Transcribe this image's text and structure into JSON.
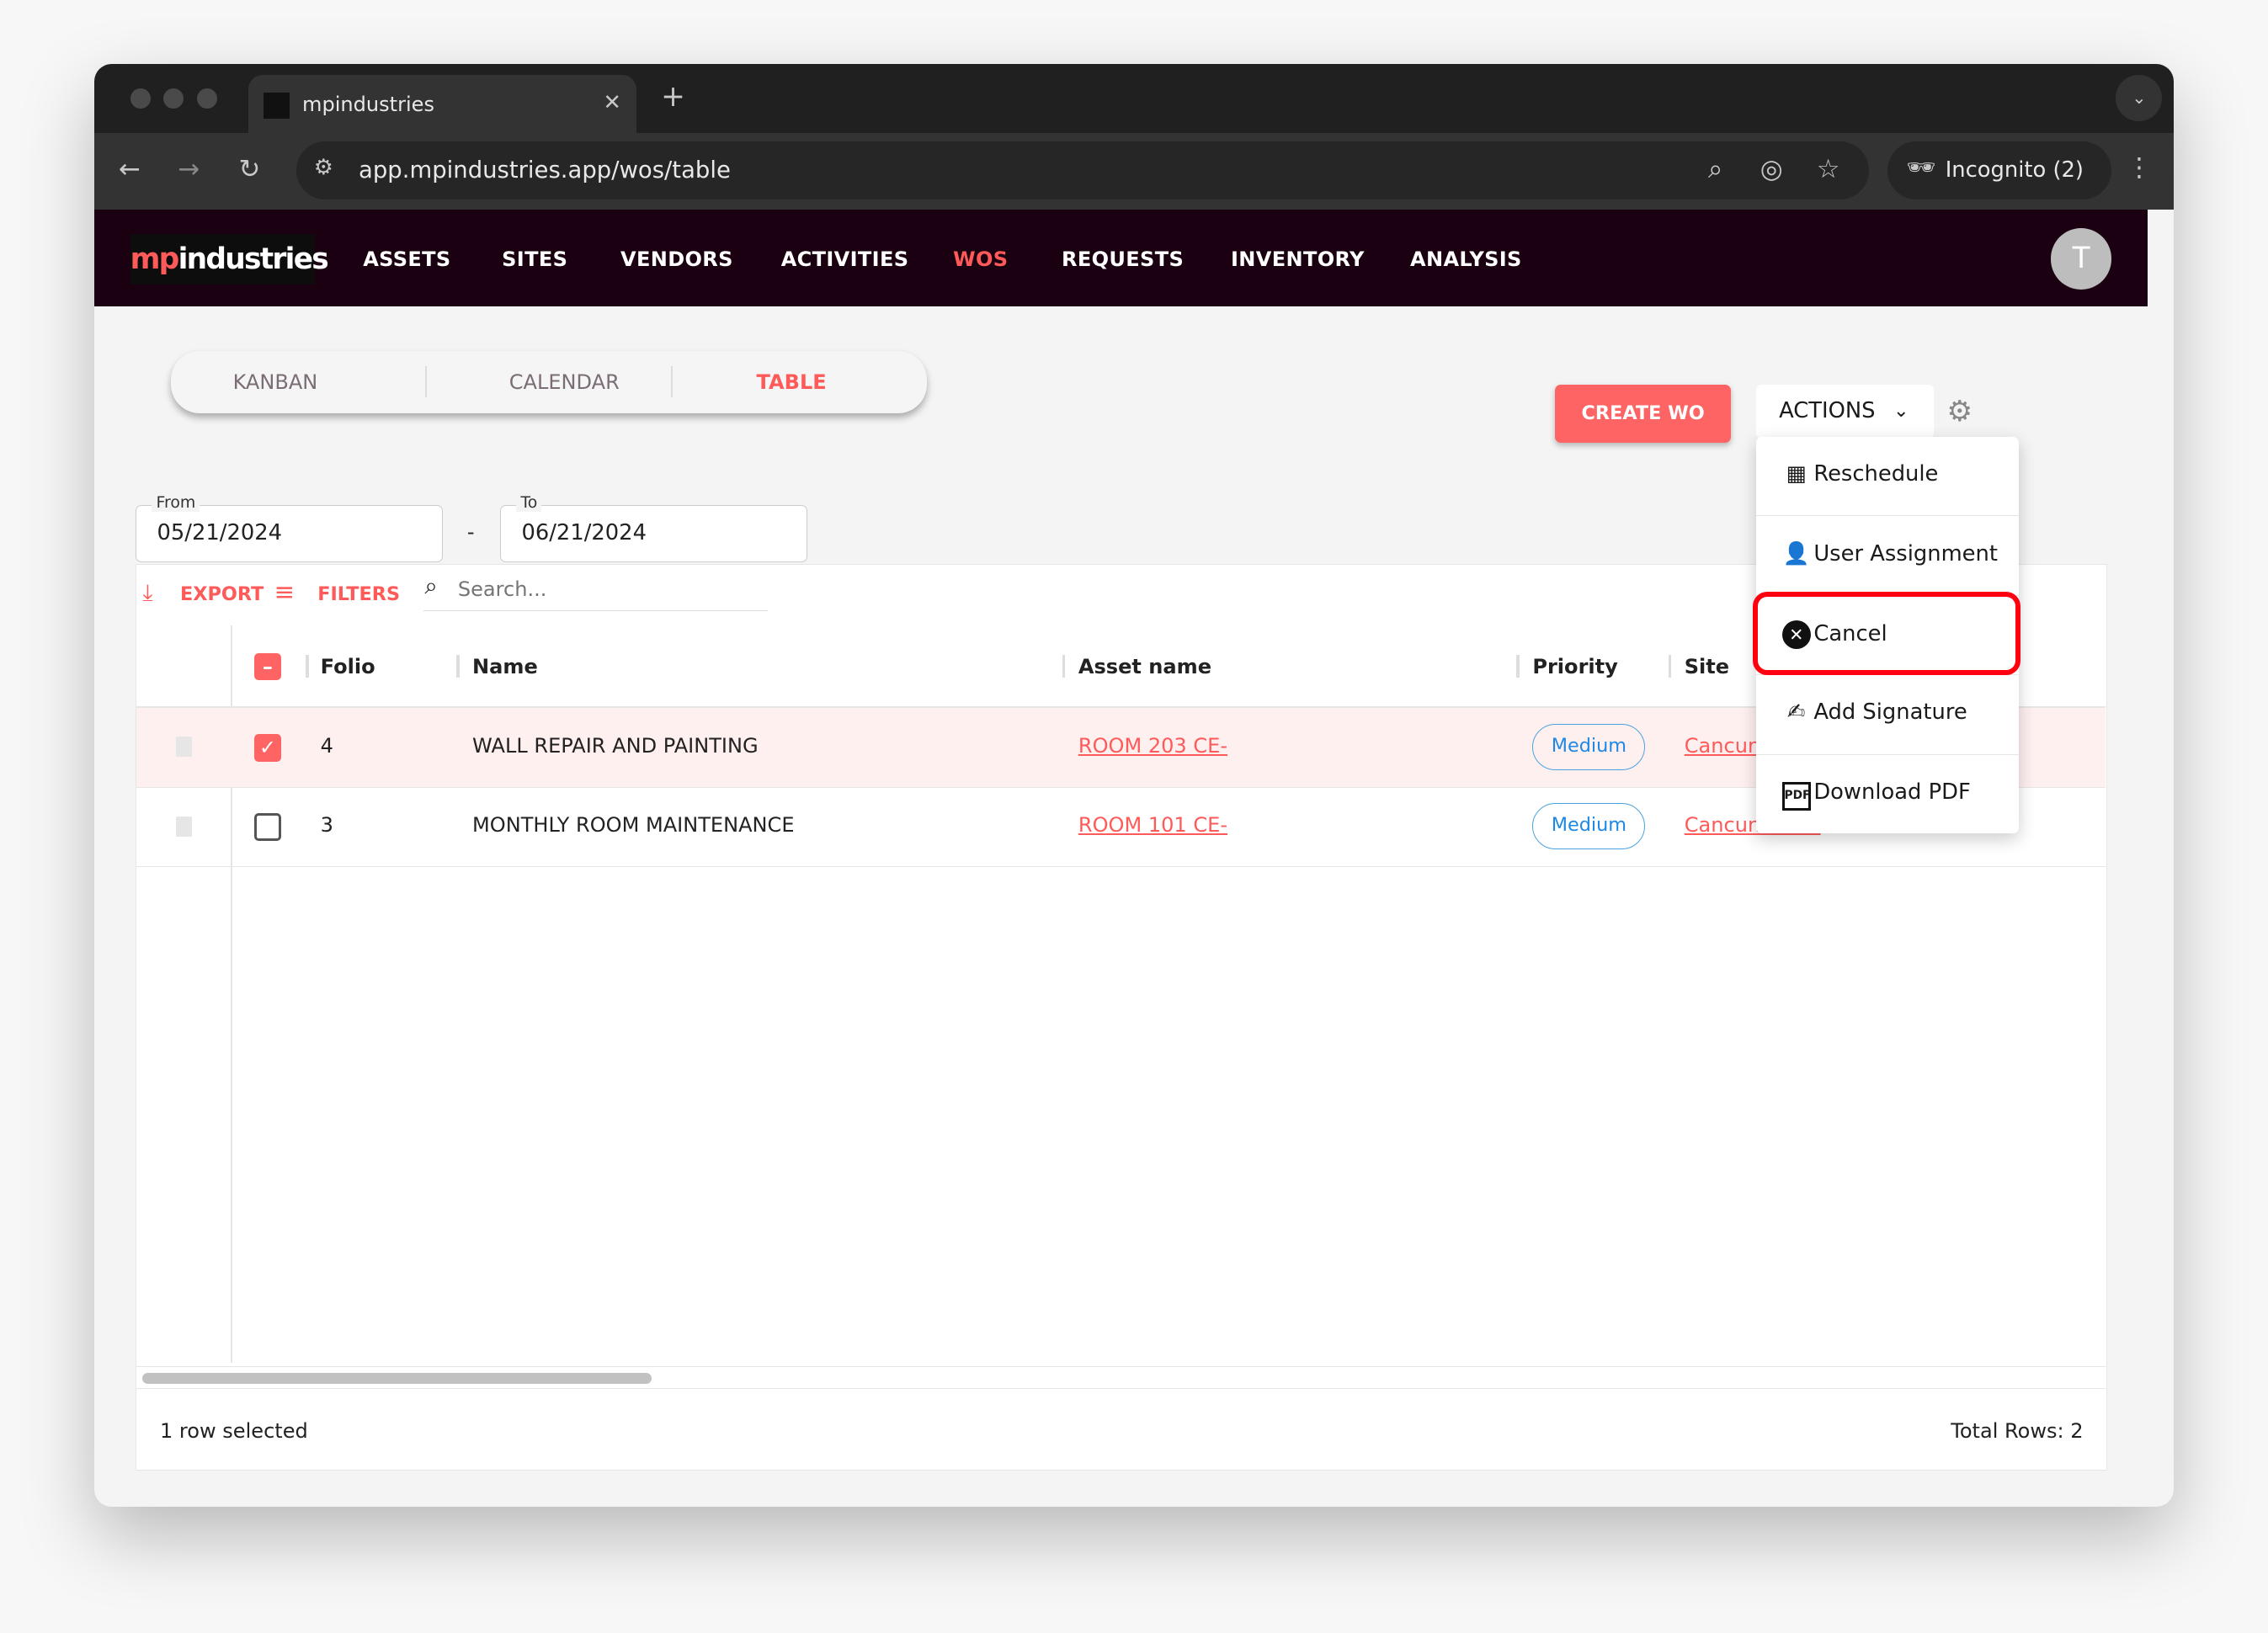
{
  "browser": {
    "tab_title": "mpindustries",
    "url": "app.mpindustries.app/wos/table",
    "incognito_label": "Incognito (2)"
  },
  "nav": {
    "logo": {
      "prefix": "mp",
      "suffix": "industries"
    },
    "items": [
      "ASSETS",
      "SITES",
      "VENDORS",
      "ACTIVITIES",
      "WOS",
      "REQUESTS",
      "INVENTORY",
      "ANALYSIS"
    ],
    "active": "WOS",
    "avatar_letter": "T"
  },
  "views": {
    "items": [
      "KANBAN",
      "CALENDAR",
      "TABLE"
    ],
    "active": "TABLE"
  },
  "buttons": {
    "create": "CREATE WO",
    "actions": "ACTIONS"
  },
  "dates": {
    "from_label": "From",
    "from_value": "05/21/2024",
    "separator": "-",
    "to_label": "To",
    "to_value": "06/21/2024"
  },
  "toolbar": {
    "export": "EXPORT",
    "filters": "FILTERS",
    "search_placeholder": "Search..."
  },
  "table": {
    "columns": [
      "Folio",
      "Name",
      "Asset name",
      "Priority",
      "Site"
    ],
    "rows": [
      {
        "folio": "4",
        "name": "WALL REPAIR AND PAINTING",
        "asset": "ROOM 203 CE-",
        "priority": "Medium",
        "site": "Cancun",
        "selected": true
      },
      {
        "folio": "3",
        "name": "MONTHLY ROOM MAINTENANCE",
        "asset": "ROOM 101 CE-",
        "priority": "Medium",
        "site": "Cancun Hotel",
        "selected": false
      }
    ],
    "footer": {
      "selected": "1 row selected",
      "total": "Total Rows: 2"
    }
  },
  "actions_menu": {
    "items": [
      "Reschedule",
      "User Assignment",
      "Cancel",
      "Add Signature",
      "Download PDF"
    ],
    "highlighted": "Cancel"
  },
  "colors": {
    "brand": "#ff6464",
    "nav_bg": "#1a0010",
    "highlight": "#ff0010",
    "priority": "#1e88e5"
  }
}
